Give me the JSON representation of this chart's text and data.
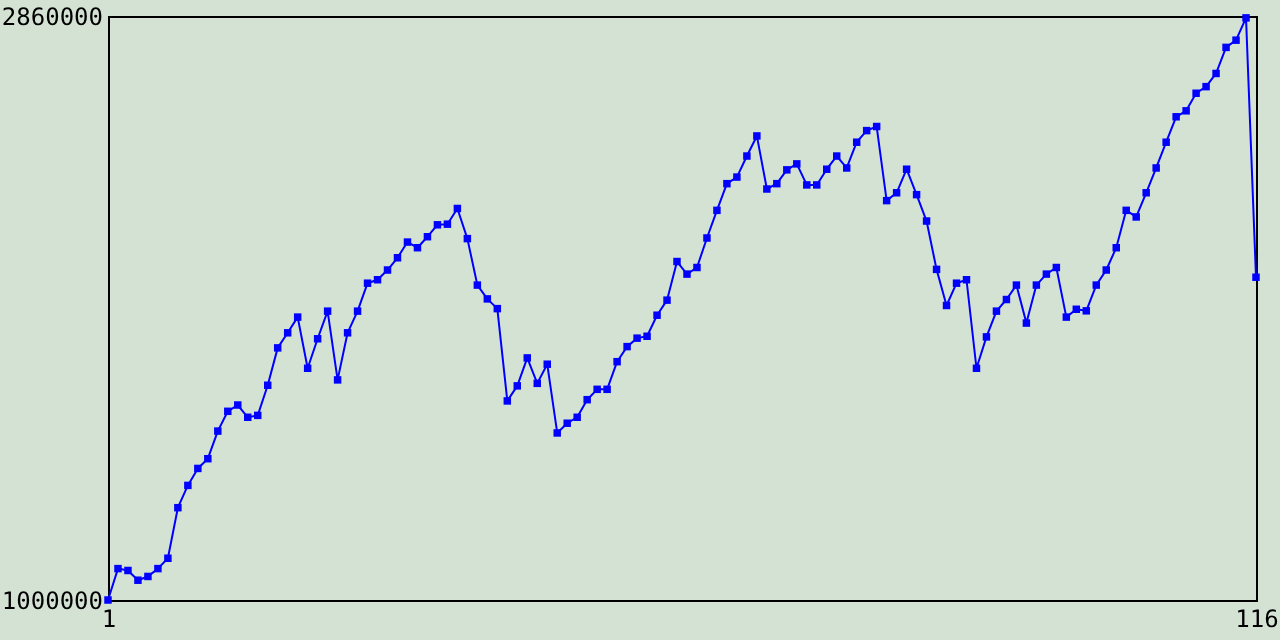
{
  "chart_data": {
    "type": "line",
    "x": [
      1,
      2,
      3,
      4,
      5,
      6,
      7,
      8,
      9,
      10,
      11,
      12,
      13,
      14,
      15,
      16,
      17,
      18,
      19,
      20,
      21,
      22,
      23,
      24,
      25,
      26,
      27,
      28,
      29,
      30,
      31,
      32,
      33,
      34,
      35,
      36,
      37,
      38,
      39,
      40,
      41,
      42,
      43,
      44,
      45,
      46,
      47,
      48,
      49,
      50,
      51,
      52,
      53,
      54,
      55,
      56,
      57,
      58,
      59,
      60,
      61,
      62,
      63,
      64,
      65,
      66,
      67,
      68,
      69,
      70,
      71,
      72,
      73,
      74,
      75,
      76,
      77,
      78,
      79,
      80,
      81,
      82,
      83,
      84,
      85,
      86,
      87,
      88,
      89,
      90,
      91,
      92,
      93,
      94,
      95,
      96,
      97,
      98,
      99,
      100,
      101,
      102,
      103,
      104,
      105,
      106,
      107,
      108,
      109,
      110,
      111,
      112,
      113,
      114,
      115,
      116
    ],
    "series": [
      {
        "color": "#0000ff",
        "values": [
          1000000,
          1100000,
          1094000,
          1063000,
          1075000,
          1100000,
          1133000,
          1294000,
          1365000,
          1419000,
          1450000,
          1538000,
          1601000,
          1621000,
          1582000,
          1588000,
          1684000,
          1803000,
          1851000,
          1901000,
          1738000,
          1832000,
          1920000,
          1701000,
          1851000,
          1920000,
          2009000,
          2020000,
          2051000,
          2090000,
          2140000,
          2122000,
          2157000,
          2195000,
          2197000,
          2247000,
          2151000,
          2003000,
          1959000,
          1928000,
          1634000,
          1682000,
          1771000,
          1690000,
          1751000,
          1532000,
          1563000,
          1582000,
          1638000,
          1671000,
          1671000,
          1759000,
          1807000,
          1834000,
          1840000,
          1907000,
          1955000,
          2078000,
          2038000,
          2059000,
          2153000,
          2241000,
          2326000,
          2347000,
          2414000,
          2478000,
          2309000,
          2326000,
          2370000,
          2389000,
          2322000,
          2322000,
          2372000,
          2414000,
          2376000,
          2458000,
          2495000,
          2508000,
          2272000,
          2297000,
          2372000,
          2291000,
          2207000,
          2053000,
          1938000,
          2009000,
          2020000,
          1738000,
          1838000,
          1920000,
          1957000,
          2003000,
          1882000,
          2003000,
          2038000,
          2059000,
          1901000,
          1926000,
          1921000,
          2003000,
          2051000,
          2122000,
          2241000,
          2220000,
          2297000,
          2376000,
          2458000,
          2539000,
          2558000,
          2614000,
          2635000,
          2677000,
          2760000,
          2783000,
          2854000,
          2028000
        ]
      }
    ],
    "xlim": [
      1,
      116
    ],
    "xticks": [
      1,
      116
    ],
    "ylim": [
      1000000,
      2860000
    ],
    "yticks": [
      1000000,
      2860000
    ],
    "marker": "square",
    "line_style": "solid"
  }
}
